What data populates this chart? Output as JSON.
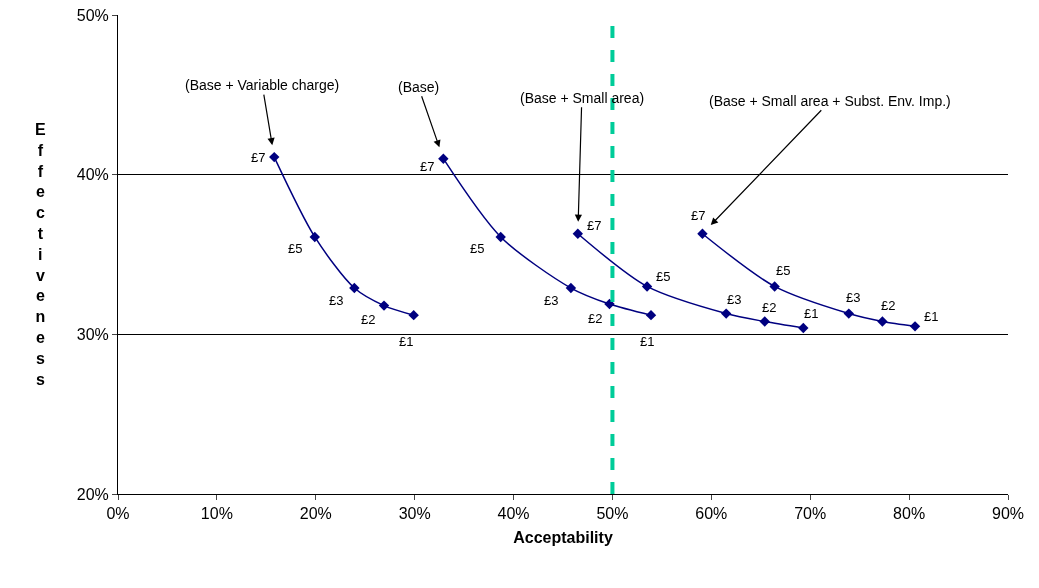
{
  "chart_data": {
    "type": "line",
    "xlabel": "Acceptability",
    "ylabel": "Effectiveness",
    "xlim": [
      0,
      90
    ],
    "xticks": [
      {
        "value": 0,
        "label": "0%"
      },
      {
        "value": 10,
        "label": "10%"
      },
      {
        "value": 20,
        "label": "20%"
      },
      {
        "value": 30,
        "label": "30%"
      },
      {
        "value": 40,
        "label": "40%"
      },
      {
        "value": 50,
        "label": "50%"
      },
      {
        "value": 60,
        "label": "60%"
      },
      {
        "value": 70,
        "label": "70%"
      },
      {
        "value": 80,
        "label": "80%"
      },
      {
        "value": 90,
        "label": "90%"
      }
    ],
    "ylim": [
      20,
      50
    ],
    "yticks": [
      {
        "value": 20,
        "label": "20%"
      },
      {
        "value": 30,
        "label": "30%"
      },
      {
        "value": 40,
        "label": "40%"
      },
      {
        "value": 50,
        "label": "50%"
      }
    ],
    "grid": "y",
    "marker": "diamond",
    "line_style": "solid",
    "series": [
      {
        "color": "#000080",
        "x": [
          15.8,
          19.9,
          23.9,
          26.9,
          29.9
        ],
        "values": [
          41.1,
          36.1,
          32.9,
          31.8,
          31.2
        ]
      },
      {
        "color": "#000080",
        "x": [
          32.9,
          38.7,
          45.8,
          49.7,
          53.9
        ],
        "values": [
          41.0,
          36.1,
          32.9,
          31.9,
          31.2
        ]
      },
      {
        "color": "#000080",
        "x": [
          46.5,
          53.5,
          61.5,
          65.4,
          69.3
        ],
        "values": [
          36.3,
          33.0,
          31.3,
          30.8,
          30.4
        ]
      },
      {
        "color": "#000080",
        "x": [
          59.1,
          66.4,
          73.9,
          77.3,
          80.6
        ],
        "values": [
          36.3,
          33.0,
          31.3,
          30.8,
          30.5
        ]
      }
    ],
    "ref_lines": [
      {
        "axis": "x",
        "value": 50,
        "color": "#00cc99",
        "line_style": "dashed"
      }
    ],
    "annotations": [
      {
        "text": "(Base + Variable charge)",
        "x": 15.8,
        "y": 41.1
      },
      {
        "text": "(Base)",
        "x": 32.9,
        "y": 41.0
      },
      {
        "text": "(Base + Small area)",
        "x": 46.5,
        "y": 36.3
      },
      {
        "text": "(Base + Small area + Subst. Env. Imp.)",
        "x": 59.1,
        "y": 36.3
      },
      {
        "text": "£7",
        "x": 15.8,
        "y": 41.1
      },
      {
        "text": "£5",
        "x": 19.9,
        "y": 36.1
      },
      {
        "text": "£3",
        "x": 23.9,
        "y": 32.9
      },
      {
        "text": "£2",
        "x": 26.9,
        "y": 31.8
      },
      {
        "text": "£1",
        "x": 29.9,
        "y": 31.2
      },
      {
        "text": "£7",
        "x": 32.9,
        "y": 41.0
      },
      {
        "text": "£5",
        "x": 38.7,
        "y": 36.1
      },
      {
        "text": "£3",
        "x": 45.8,
        "y": 32.9
      },
      {
        "text": "£2",
        "x": 49.7,
        "y": 31.9
      },
      {
        "text": "£1",
        "x": 53.9,
        "y": 31.2
      },
      {
        "text": "£7",
        "x": 46.5,
        "y": 36.3
      },
      {
        "text": "£5",
        "x": 53.5,
        "y": 33.0
      },
      {
        "text": "£3",
        "x": 61.5,
        "y": 31.3
      },
      {
        "text": "£2",
        "x": 65.4,
        "y": 30.8
      },
      {
        "text": "£1",
        "x": 69.3,
        "y": 30.4
      },
      {
        "text": "£7",
        "x": 59.1,
        "y": 36.3
      },
      {
        "text": "£5",
        "x": 66.4,
        "y": 33.0
      },
      {
        "text": "£3",
        "x": 73.9,
        "y": 31.3
      },
      {
        "text": "£2",
        "x": 77.3,
        "y": 30.8
      },
      {
        "text": "£1",
        "x": 80.6,
        "y": 30.5
      }
    ]
  }
}
